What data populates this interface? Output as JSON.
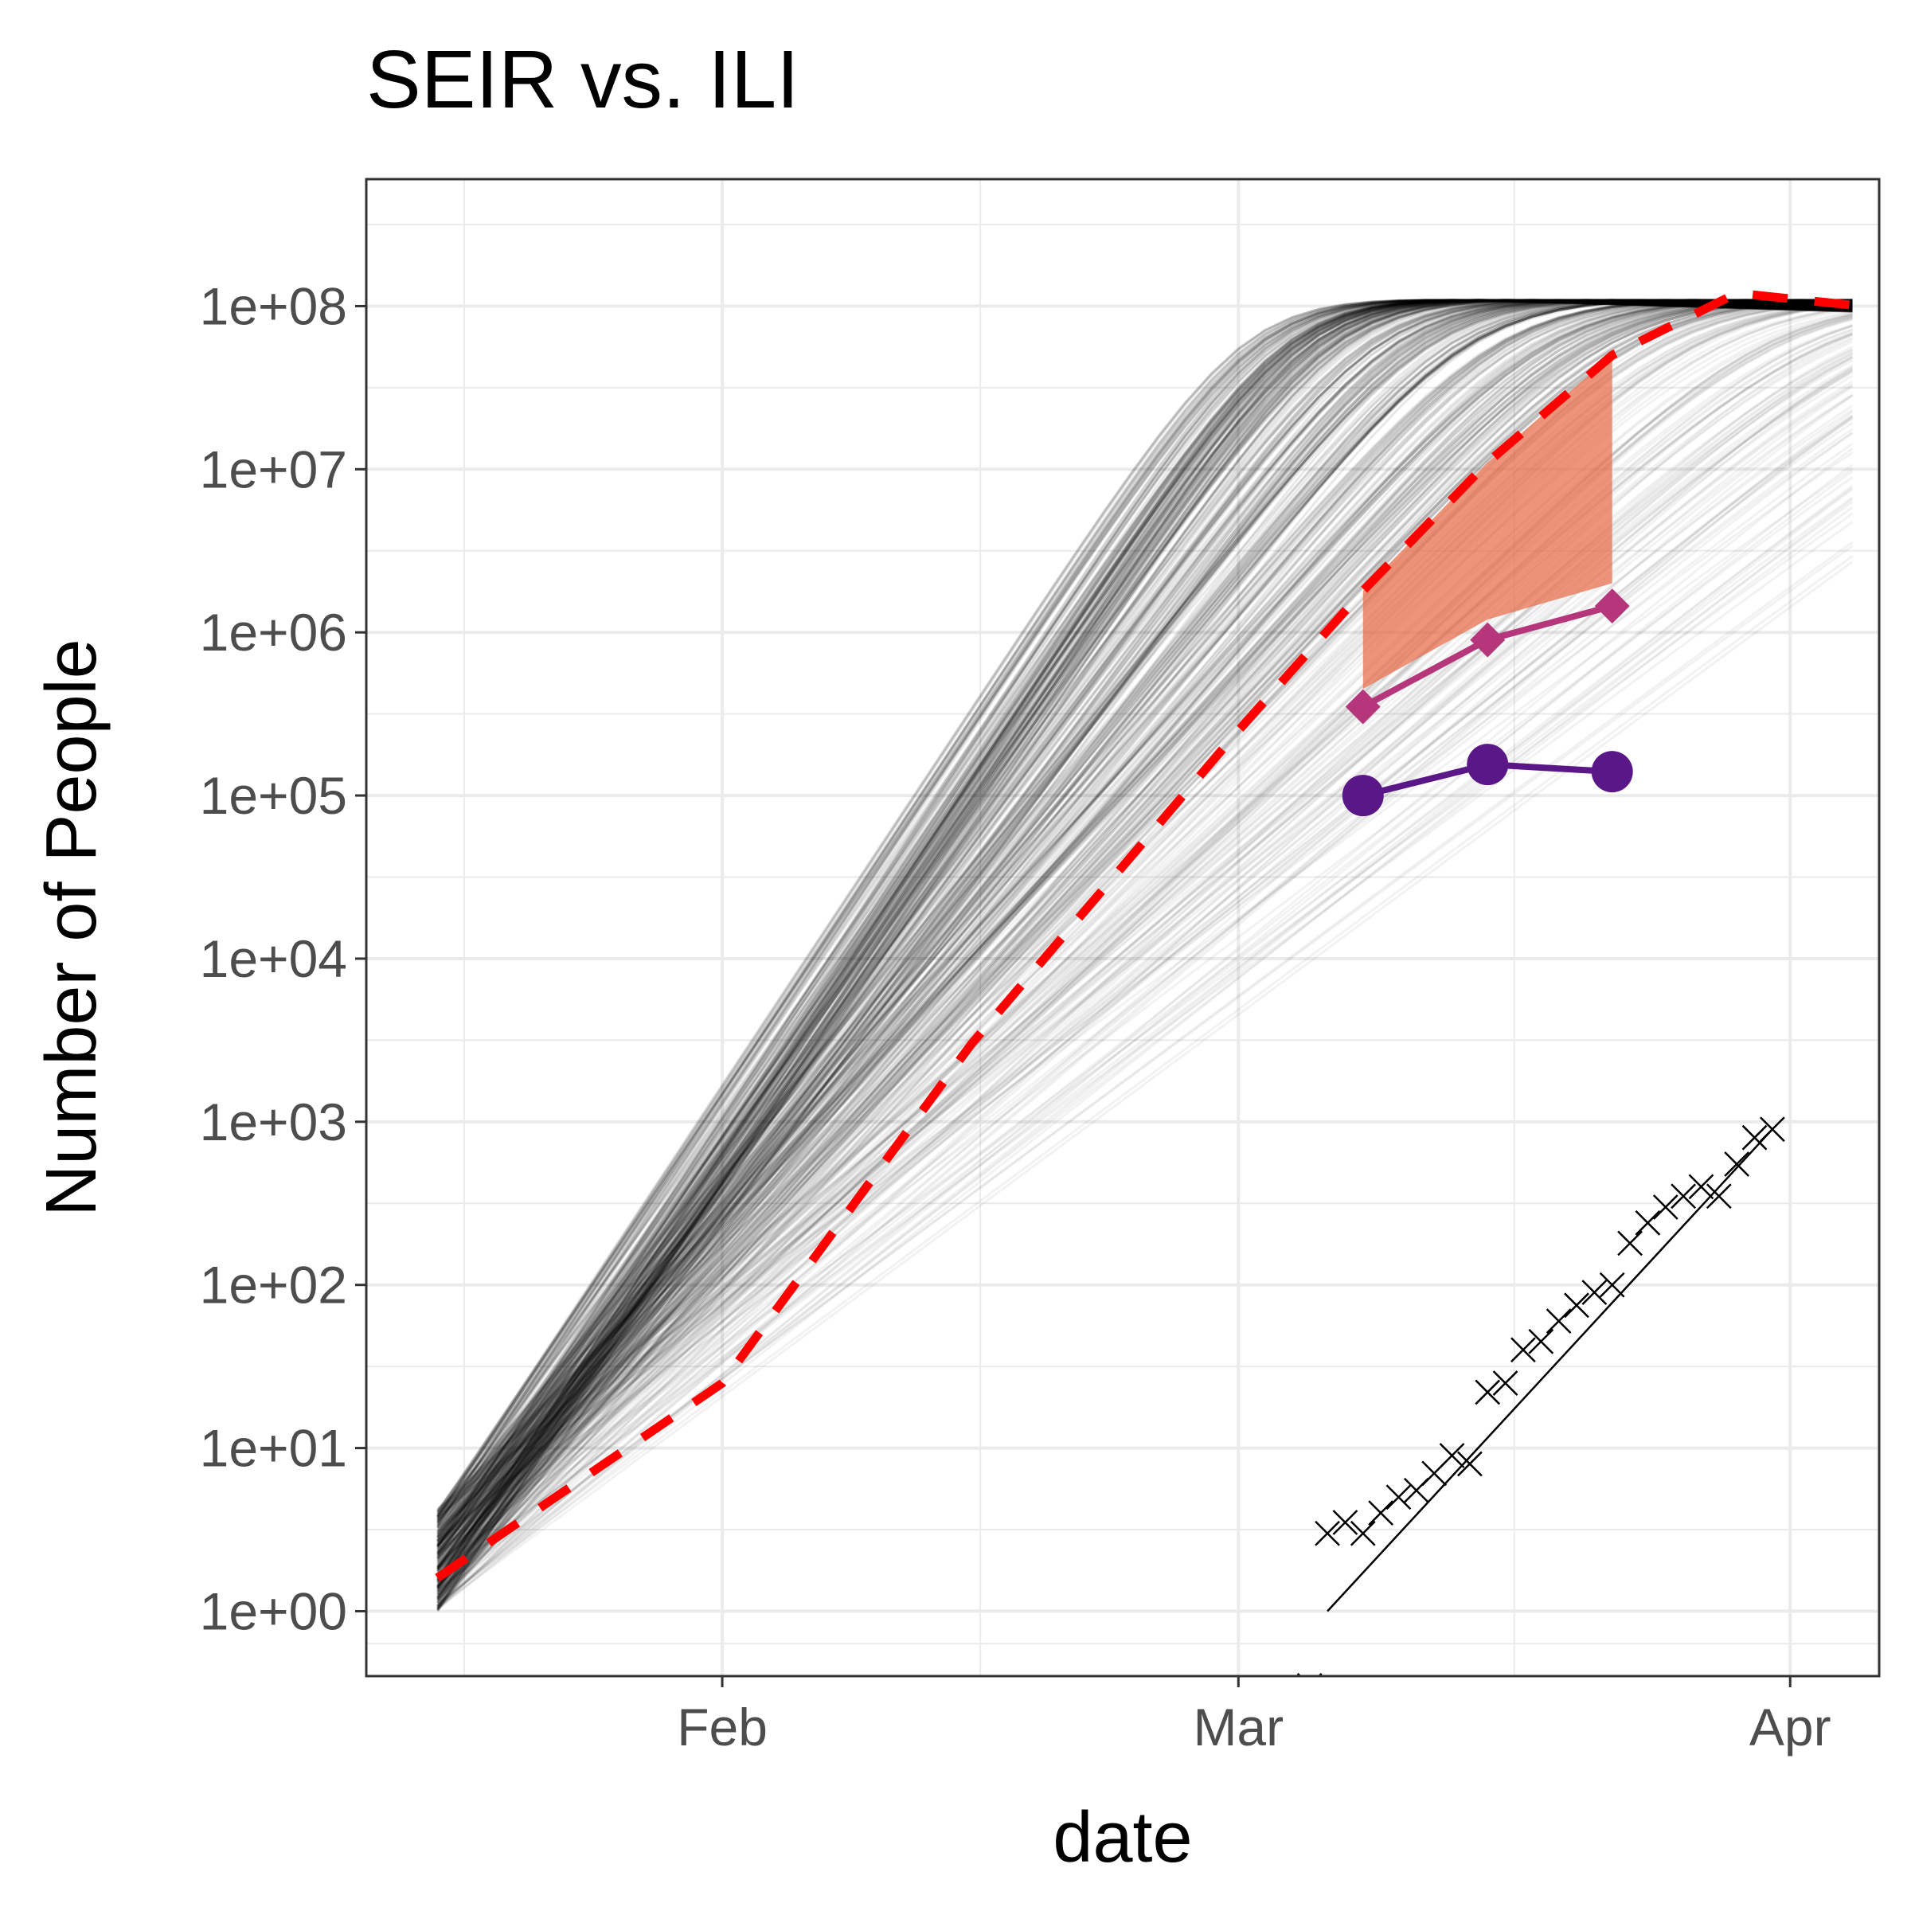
{
  "chart_data": {
    "type": "line",
    "title": "SEIR vs. ILI",
    "xlabel": "date",
    "ylabel": "Number of People",
    "y_scale": "log10",
    "ylim": [
      0.4,
      600000000
    ],
    "xlim": [
      "2020-01-12",
      "2020-04-06"
    ],
    "x_ticks": [
      {
        "date": "2020-02-01",
        "label": "Feb"
      },
      {
        "date": "2020-03-01",
        "label": "Mar"
      },
      {
        "date": "2020-04-01",
        "label": "Apr"
      }
    ],
    "y_ticks": [
      {
        "value": 1,
        "label": "1e+00"
      },
      {
        "value": 10,
        "label": "1e+01"
      },
      {
        "value": 100,
        "label": "1e+02"
      },
      {
        "value": 1000,
        "label": "1e+03"
      },
      {
        "value": 10000,
        "label": "1e+04"
      },
      {
        "value": 100000,
        "label": "1e+05"
      },
      {
        "value": 1000000,
        "label": "1e+06"
      },
      {
        "value": 10000000,
        "label": "1e+07"
      },
      {
        "value": 100000000,
        "label": "1e+08"
      }
    ],
    "grid": true,
    "legend": "none",
    "colors": {
      "central_estimate": "#ff0000",
      "simulations": "#000000",
      "ribbon": "#e8704f",
      "ili_upper": "#b5367a",
      "ili_lower": "#5a1788",
      "confirmed_cases": "#000000"
    },
    "simulation_envelope": {
      "note_count_of_runs_not_shown": true,
      "start_date": "2020-01-16",
      "end_date": "2020-04-05",
      "peak": 120000000,
      "start_range": [
        1,
        5
      ]
    },
    "series": [
      {
        "role": "central_estimate",
        "style": "dashed",
        "x": [
          "2020-01-16",
          "2020-02-01",
          "2020-02-15",
          "2020-03-01",
          "2020-03-08",
          "2020-03-15",
          "2020-03-22",
          "2020-03-29",
          "2020-04-05"
        ],
        "y": [
          1.6,
          25,
          3000,
          250000,
          1800000,
          11000000,
          50000000,
          120000000,
          100000000
        ]
      },
      {
        "role": "ribbon_upper",
        "x": [
          "2020-03-08",
          "2020-03-15",
          "2020-03-22"
        ],
        "y": [
          1800000,
          11000000,
          50000000
        ]
      },
      {
        "role": "ribbon_lower",
        "x": [
          "2020-03-08",
          "2020-03-15",
          "2020-03-22"
        ],
        "y": [
          450000,
          1200000,
          2000000
        ]
      },
      {
        "role": "ili_upper",
        "marker": "diamond",
        "x": [
          "2020-03-08",
          "2020-03-15",
          "2020-03-22"
        ],
        "y": [
          350000,
          900000,
          1450000
        ]
      },
      {
        "role": "ili_lower",
        "marker": "circle",
        "x": [
          "2020-03-08",
          "2020-03-15",
          "2020-03-22"
        ],
        "y": [
          100000,
          155000,
          140000
        ]
      },
      {
        "role": "confirmed_cases",
        "marker": "cross",
        "x": [
          "2020-03-05",
          "2020-03-06",
          "2020-03-07",
          "2020-03-08",
          "2020-03-09",
          "2020-03-10",
          "2020-03-11",
          "2020-03-12",
          "2020-03-13",
          "2020-03-14",
          "2020-03-15",
          "2020-03-16",
          "2020-03-17",
          "2020-03-18",
          "2020-03-19",
          "2020-03-20",
          "2020-03-21",
          "2020-03-22",
          "2020-03-23",
          "2020-03-24",
          "2020-03-25",
          "2020-03-26",
          "2020-03-27",
          "2020-03-28",
          "2020-03-29",
          "2020-03-30",
          "2020-03-31"
        ],
        "y": [
          0.35,
          3,
          3.5,
          3,
          4,
          5,
          5.5,
          7,
          9,
          8,
          22,
          25,
          40,
          45,
          60,
          75,
          90,
          100,
          180,
          240,
          300,
          350,
          400,
          350,
          550,
          800,
          900
        ]
      },
      {
        "role": "fit_line",
        "x": [
          "2020-03-06",
          "2020-03-31"
        ],
        "y": [
          1,
          900
        ]
      }
    ]
  }
}
